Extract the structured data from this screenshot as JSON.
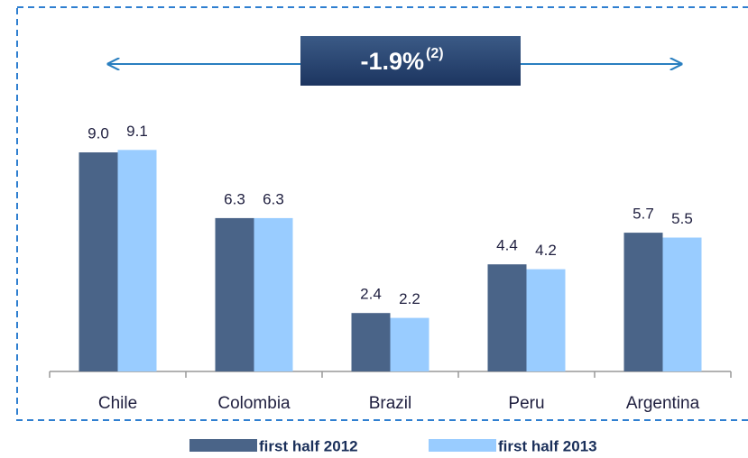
{
  "chart_data": {
    "type": "bar",
    "annotation": "-1.9%",
    "annotation_note": "(2)",
    "categories": [
      "Chile",
      "Colombia",
      "Brazil",
      "Peru",
      "Argentina"
    ],
    "series": [
      {
        "name": "first half 2012",
        "color": "#4a6488",
        "values": [
          9.0,
          6.3,
          2.4,
          4.4,
          5.7
        ],
        "value_labels": [
          "9.0",
          "6.3",
          "2.4",
          "4.4",
          "5.7"
        ]
      },
      {
        "name": "first half 2013",
        "color": "#99ccff",
        "values": [
          9.1,
          6.3,
          2.2,
          4.2,
          5.5
        ],
        "value_labels": [
          "9.1",
          "6.3",
          "2.2",
          "4.2",
          "5.5"
        ]
      }
    ]
  }
}
